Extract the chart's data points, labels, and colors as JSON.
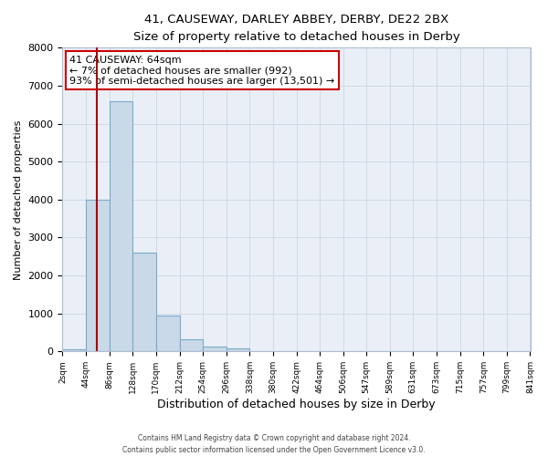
{
  "title": "41, CAUSEWAY, DARLEY ABBEY, DERBY, DE22 2BX",
  "subtitle": "Size of property relative to detached houses in Derby",
  "xlabel": "Distribution of detached houses by size in Derby",
  "ylabel": "Number of detached properties",
  "bin_edges": [
    2,
    44,
    86,
    128,
    170,
    212,
    254,
    296,
    338,
    380,
    422,
    464,
    506,
    547,
    589,
    631,
    673,
    715,
    757,
    799,
    841
  ],
  "bin_labels": [
    "2sqm",
    "44sqm",
    "86sqm",
    "128sqm",
    "170sqm",
    "212sqm",
    "254sqm",
    "296sqm",
    "338sqm",
    "380sqm",
    "422sqm",
    "464sqm",
    "506sqm",
    "547sqm",
    "589sqm",
    "631sqm",
    "673sqm",
    "715sqm",
    "757sqm",
    "799sqm",
    "841sqm"
  ],
  "counts": [
    50,
    4000,
    6600,
    2600,
    950,
    330,
    120,
    70,
    0,
    0,
    0,
    0,
    0,
    0,
    0,
    0,
    0,
    0,
    0,
    0
  ],
  "bar_facecolor": "#c9d9e8",
  "bar_edgecolor": "#7aaac8",
  "ylim": [
    0,
    8000
  ],
  "yticks": [
    0,
    1000,
    2000,
    3000,
    4000,
    5000,
    6000,
    7000,
    8000
  ],
  "vline_x": 64,
  "vline_color": "#aa0000",
  "annotation_title": "41 CAUSEWAY: 64sqm",
  "annotation_line1": "← 7% of detached houses are smaller (992)",
  "annotation_line2": "93% of semi-detached houses are larger (13,501) →",
  "annotation_box_color": "#ffffff",
  "annotation_box_edgecolor": "#cc0000",
  "grid_color": "#d0d8e8",
  "bg_color": "#eaeff7",
  "fig_bg_color": "#ffffff",
  "footer1": "Contains HM Land Registry data © Crown copyright and database right 2024.",
  "footer2": "Contains public sector information licensed under the Open Government Licence v3.0."
}
